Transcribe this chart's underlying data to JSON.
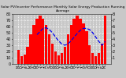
{
  "title": "Solar PV/Inverter Performance Monthly Solar Energy Production Running Average",
  "months": [
    "N",
    "D",
    "J",
    "F",
    "M",
    "A",
    "M",
    "J",
    "J",
    "A",
    "S",
    "O",
    "N",
    "D",
    "J",
    "F",
    "M",
    "A",
    "M",
    "J",
    "J",
    "A",
    "S",
    "O",
    "N",
    "D",
    "J",
    "F",
    "M"
  ],
  "values": [
    22,
    12,
    15,
    28,
    48,
    62,
    72,
    78,
    72,
    62,
    48,
    32,
    20,
    14,
    18,
    28,
    48,
    62,
    72,
    78,
    72,
    65,
    52,
    30,
    18,
    12,
    18,
    32,
    78
  ],
  "running_avg": [
    null,
    null,
    null,
    null,
    null,
    null,
    47,
    52,
    57,
    58,
    55,
    50,
    43,
    37,
    32,
    30,
    32,
    37,
    43,
    49,
    54,
    57,
    57,
    55,
    50,
    43,
    36,
    30,
    36
  ],
  "bar_color": "#ff0000",
  "avg_color": "#0000ee",
  "bg_color": "#c8c8c8",
  "plot_bg": "#c8c8c8",
  "grid_color": "#ffffff",
  "ylim": [
    0,
    80
  ],
  "ytick_right": [
    "8",
    "7",
    "6",
    "5",
    "4",
    "3",
    "2",
    "1",
    ""
  ],
  "title_fontsize": 3.2,
  "tick_fontsize": 3.5
}
